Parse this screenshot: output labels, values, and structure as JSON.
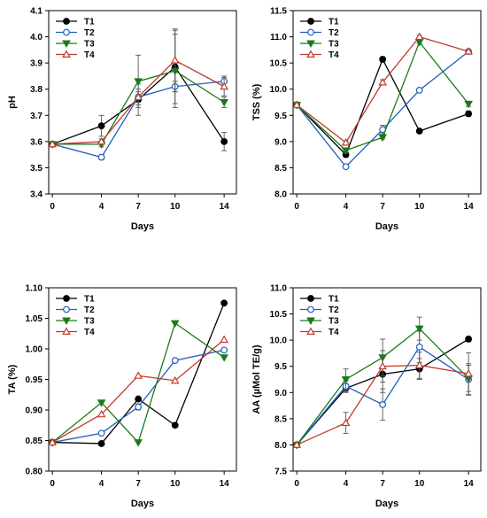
{
  "chart_data": [
    {
      "id": "ph",
      "type": "line",
      "ylabel": "pH",
      "xlabel": "Days",
      "x": [
        0,
        4,
        7,
        10,
        14
      ],
      "xticks": [
        "0",
        "4",
        "7",
        "10",
        "14"
      ],
      "ylim": [
        3.4,
        4.1
      ],
      "yticks": [
        "3.4",
        "3.5",
        "3.6",
        "3.7",
        "3.8",
        "3.9",
        "4.0",
        "4.1"
      ],
      "legend_position": "top-left",
      "series": [
        {
          "name": "T1",
          "marker": "circle",
          "filled": true,
          "color": "#000000",
          "values": [
            3.59,
            3.66,
            3.76,
            3.885,
            3.6
          ],
          "errors": [
            0.0,
            0.04,
            0.06,
            0.14,
            0.035
          ]
        },
        {
          "name": "T2",
          "marker": "circle",
          "filled": false,
          "color": "#1f5fbf",
          "values": [
            3.59,
            3.54,
            3.77,
            3.81,
            3.83
          ],
          "errors": [
            0.0,
            0.01,
            0.03,
            0.02,
            0.02
          ]
        },
        {
          "name": "T3",
          "marker": "triangle-down",
          "filled": true,
          "color": "#1a7a1a",
          "values": [
            3.59,
            3.59,
            3.83,
            3.87,
            3.75
          ],
          "errors": [
            0.0,
            0.01,
            0.1,
            0.14,
            0.02
          ]
        },
        {
          "name": "T4",
          "marker": "triangle-up",
          "filled": false,
          "color": "#c0392b",
          "values": [
            3.59,
            3.6,
            3.77,
            3.91,
            3.81
          ],
          "errors": [
            0.0,
            0.01,
            0.02,
            0.12,
            0.035
          ]
        }
      ]
    },
    {
      "id": "tss",
      "type": "line",
      "ylabel": "TSS (%)",
      "xlabel": "Days",
      "x": [
        0,
        4,
        7,
        10,
        14
      ],
      "xticks": [
        "0",
        "4",
        "7",
        "10",
        "14"
      ],
      "ylim": [
        8.0,
        11.5
      ],
      "yticks": [
        "8.0",
        "8.5",
        "9.0",
        "9.5",
        "10.0",
        "10.5",
        "11.0",
        "11.5"
      ],
      "legend_position": "top-right",
      "series": [
        {
          "name": "T1",
          "marker": "circle",
          "filled": true,
          "color": "#000000",
          "values": [
            9.7,
            8.75,
            10.57,
            9.2,
            9.53
          ],
          "errors": [
            0.0,
            0.05,
            0.05,
            0.0,
            0.05
          ]
        },
        {
          "name": "T2",
          "marker": "circle",
          "filled": false,
          "color": "#1f5fbf",
          "values": [
            9.7,
            8.52,
            9.23,
            9.98,
            10.72
          ],
          "errors": [
            0.0,
            0.0,
            0.08,
            0.03,
            0.03
          ]
        },
        {
          "name": "T3",
          "marker": "triangle-down",
          "filled": true,
          "color": "#1a7a1a",
          "values": [
            9.7,
            8.83,
            9.08,
            10.9,
            9.72
          ],
          "errors": [
            0.0,
            0.05,
            0.03,
            0.03,
            0.05
          ]
        },
        {
          "name": "T4",
          "marker": "triangle-up",
          "filled": false,
          "color": "#c0392b",
          "values": [
            9.7,
            8.98,
            10.13,
            11.0,
            10.72
          ],
          "errors": [
            0.0,
            0.03,
            0.05,
            0.03,
            0.03
          ]
        }
      ]
    },
    {
      "id": "ta",
      "type": "line",
      "ylabel": "TA (%)",
      "xlabel": "Days",
      "x": [
        0,
        4,
        7,
        10,
        14
      ],
      "xticks": [
        "0",
        "4",
        "7",
        "10",
        "14"
      ],
      "ylim": [
        0.8,
        1.1
      ],
      "yticks": [
        "0.80",
        "0.85",
        "0.90",
        "0.95",
        "1.00",
        "1.05",
        "1.10"
      ],
      "legend_position": "top-left",
      "series": [
        {
          "name": "T1",
          "marker": "circle",
          "filled": true,
          "color": "#000000",
          "values": [
            0.847,
            0.845,
            0.918,
            0.875,
            1.075
          ],
          "errors": [
            0.0,
            0.0,
            0.0,
            0.0,
            0.0
          ]
        },
        {
          "name": "T2",
          "marker": "circle",
          "filled": false,
          "color": "#1f5fbf",
          "values": [
            0.847,
            0.862,
            0.905,
            0.981,
            0.998
          ],
          "errors": [
            0.0,
            0.0,
            0.005,
            0.002,
            0.0
          ]
        },
        {
          "name": "T3",
          "marker": "triangle-down",
          "filled": true,
          "color": "#1a7a1a",
          "values": [
            0.847,
            0.912,
            0.847,
            1.042,
            0.986
          ],
          "errors": [
            0.0,
            0.0,
            0.0,
            0.0,
            0.0
          ]
        },
        {
          "name": "T4",
          "marker": "triangle-up",
          "filled": false,
          "color": "#c0392b",
          "values": [
            0.847,
            0.893,
            0.956,
            0.948,
            1.015
          ],
          "errors": [
            0.0,
            0.0,
            0.0,
            0.0,
            0.0
          ]
        }
      ]
    },
    {
      "id": "aa",
      "type": "line",
      "ylabel": "AA (µMol TE/g)",
      "xlabel": "Days",
      "x": [
        0,
        4,
        7,
        10,
        14
      ],
      "xticks": [
        "0",
        "4",
        "7",
        "10",
        "14"
      ],
      "ylim": [
        7.5,
        11.0
      ],
      "yticks": [
        "7.5",
        "8.0",
        "8.5",
        "9.0",
        "9.5",
        "10.0",
        "10.5",
        "11.0"
      ],
      "legend_position": "top-left",
      "series": [
        {
          "name": "T1",
          "marker": "circle",
          "filled": true,
          "color": "#000000",
          "values": [
            8.0,
            9.08,
            9.35,
            9.45,
            10.02
          ],
          "errors": [
            0.0,
            0.08,
            0.35,
            0.2,
            0.05
          ]
        },
        {
          "name": "T2",
          "marker": "circle",
          "filled": false,
          "color": "#1f5fbf",
          "values": [
            8.0,
            9.12,
            8.77,
            9.87,
            9.25
          ],
          "errors": [
            0.0,
            0.1,
            0.3,
            0.3,
            0.3
          ]
        },
        {
          "name": "T3",
          "marker": "triangle-down",
          "filled": true,
          "color": "#1a7a1a",
          "values": [
            8.0,
            9.25,
            9.67,
            10.22,
            9.27
          ],
          "errors": [
            0.0,
            0.2,
            0.35,
            0.22,
            0.25
          ]
        },
        {
          "name": "T4",
          "marker": "triangle-up",
          "filled": false,
          "color": "#c0392b",
          "values": [
            8.0,
            8.42,
            9.5,
            9.52,
            9.36
          ],
          "errors": [
            0.0,
            0.2,
            0.3,
            0.25,
            0.4
          ]
        }
      ]
    }
  ]
}
